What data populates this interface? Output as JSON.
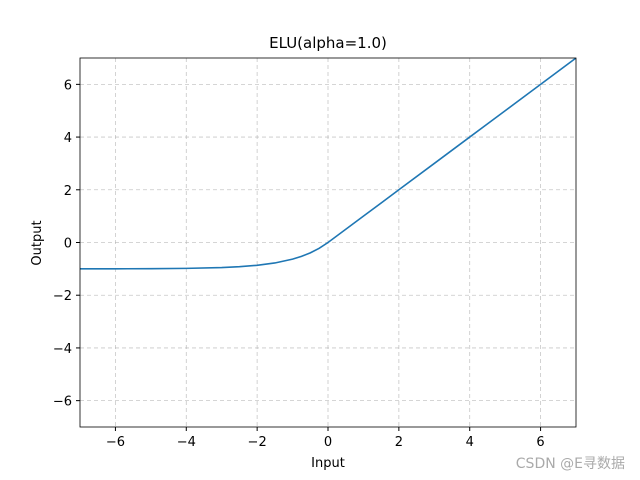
{
  "chart_data": {
    "type": "line",
    "title": "ELU(alpha=1.0)",
    "x_label": "Input",
    "y_label": "Output",
    "x": [
      -7,
      -6,
      -5,
      -4,
      -3,
      -2.5,
      -2,
      -1.5,
      -1,
      -0.75,
      -0.5,
      -0.25,
      0,
      1,
      2,
      3,
      4,
      5,
      6,
      7
    ],
    "series": [
      {
        "color": "#1f77b4",
        "values": [
          -0.999,
          -0.998,
          -0.993,
          -0.982,
          -0.95,
          -0.918,
          -0.865,
          -0.777,
          -0.632,
          -0.528,
          -0.393,
          -0.221,
          0,
          1,
          2,
          3,
          4,
          5,
          6,
          7
        ]
      }
    ],
    "xlim": [
      -7,
      7
    ],
    "ylim": [
      -7,
      7
    ],
    "xticks": [
      {
        "value": -6,
        "label": "−6"
      },
      {
        "value": -4,
        "label": "−4"
      },
      {
        "value": -2,
        "label": "−2"
      },
      0,
      2,
      4,
      6
    ],
    "yticks": [
      {
        "value": -6,
        "label": "−6"
      },
      {
        "value": -4,
        "label": "−4"
      },
      {
        "value": -2,
        "label": "−2"
      },
      0,
      2,
      4,
      6
    ],
    "grid": true,
    "watermark": "CSDN @E寻数据"
  }
}
